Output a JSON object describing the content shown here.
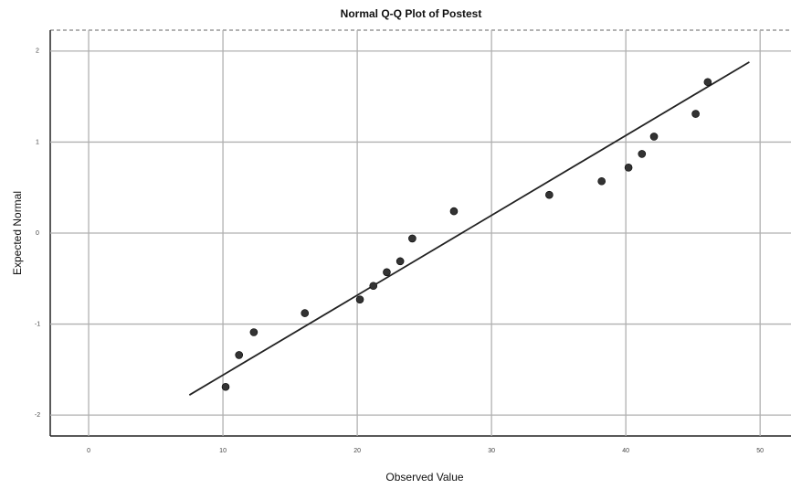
{
  "chart_data": {
    "type": "scatter",
    "title": "Normal Q-Q Plot of Postest",
    "xlabel": "Observed Value",
    "ylabel": "Expected Normal",
    "x": [
      10.2,
      11.2,
      12.3,
      16.1,
      20.2,
      21.2,
      22.2,
      23.2,
      24.1,
      27.2,
      34.3,
      38.2,
      40.2,
      41.2,
      42.1,
      45.2,
      46.1
    ],
    "values": [
      -1.69,
      -1.34,
      -1.09,
      -0.88,
      -0.73,
      -0.58,
      -0.43,
      -0.31,
      -0.06,
      0.24,
      0.42,
      0.57,
      0.72,
      0.87,
      1.06,
      1.31,
      1.66
    ],
    "color": "#333333",
    "reference_line": {
      "x": [
        7.5,
        49.2
      ],
      "y": [
        -1.78,
        1.88
      ],
      "color": "#222222"
    },
    "xlim": [
      -2.86,
      52.3
    ],
    "xticks": [
      0,
      10,
      20,
      30,
      40,
      50
    ],
    "ylim": [
      -2.23,
      2.23
    ],
    "yticks": [
      2,
      1,
      0,
      -1,
      -2
    ],
    "grid": true
  }
}
